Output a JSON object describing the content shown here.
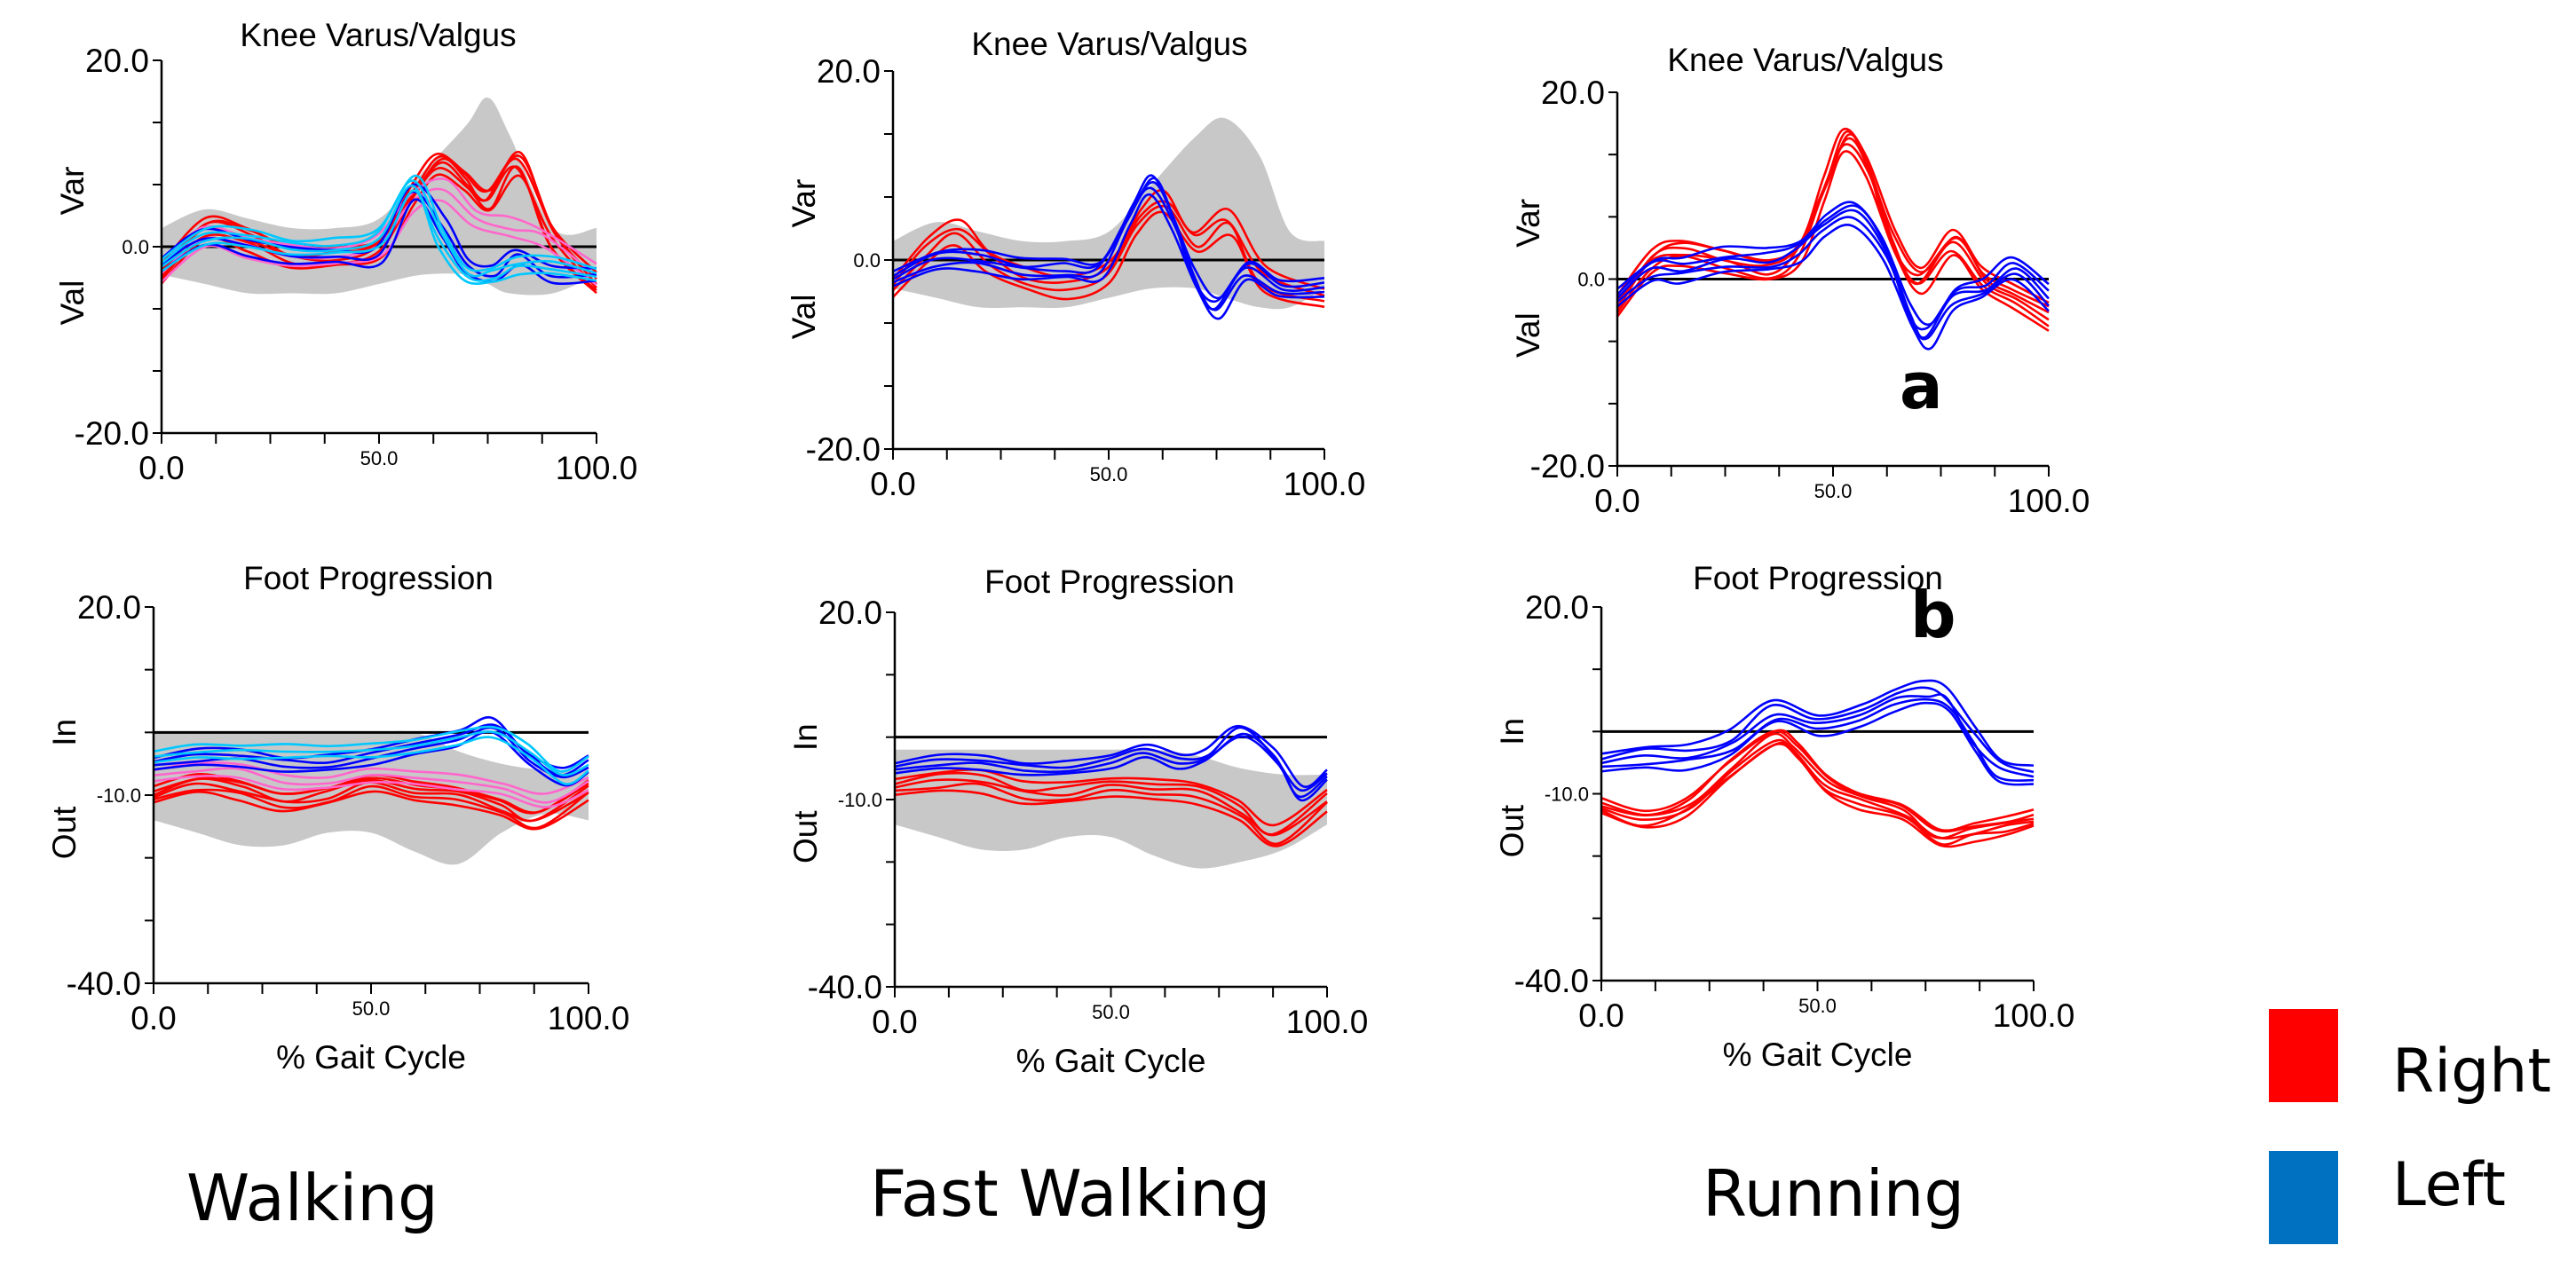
{
  "figure": {
    "conditions": [
      "Walking",
      "Fast Walking",
      "Running"
    ],
    "legend": [
      {
        "label": "Right",
        "color": "#ff0000"
      },
      {
        "label": "Left",
        "color": "#0070c0"
      }
    ],
    "panel_letters": [
      "a",
      "b"
    ]
  },
  "chart_data": [
    {
      "type": "line",
      "title": "Knee Varus/Valgus",
      "condition": "Walking",
      "row": "knee",
      "xlim": [
        0,
        100
      ],
      "ylim": [
        -20,
        20
      ],
      "x_ticks": [
        {
          "v": 0,
          "label": "0.0"
        },
        {
          "v": 50,
          "label": "50.0",
          "small": true
        },
        {
          "v": 100,
          "label": "100.0"
        }
      ],
      "y_ticks": [
        {
          "v": 20,
          "label": "20.0"
        },
        {
          "v": 0,
          "label": "0.0",
          "small": true
        },
        {
          "v": -20,
          "label": "-20.0"
        }
      ],
      "y_words": [
        {
          "v": 6,
          "label": "Var"
        },
        {
          "v": -6,
          "label": "Val"
        }
      ],
      "xlabel": "",
      "reference_line": 0,
      "normal_band": {
        "x": [
          0,
          10,
          20,
          30,
          40,
          50,
          60,
          70,
          75,
          80,
          90,
          100
        ],
        "upper": [
          2,
          4,
          3,
          2,
          2,
          3,
          8,
          13,
          16,
          12,
          2,
          2
        ],
        "lower": [
          -3,
          -4,
          -5,
          -5,
          -5,
          -4,
          -3,
          -3,
          -4,
          -5,
          -5,
          -3
        ]
      },
      "series": [
        {
          "name": "Right",
          "color": "#ff0000",
          "x": [
            0,
            10,
            20,
            30,
            40,
            50,
            58,
            64,
            70,
            75,
            82,
            90,
            100
          ],
          "y": [
            -3,
            2,
            1,
            -1,
            -1,
            0,
            6,
            9,
            7,
            5,
            9,
            1,
            -4
          ],
          "trials": 6,
          "spread": 1.2
        },
        {
          "name": "Right (pink)",
          "color": "#ff66cc",
          "x": [
            0,
            10,
            20,
            30,
            40,
            50,
            58,
            65,
            72,
            80,
            88,
            100
          ],
          "y": [
            -3,
            1,
            0,
            -1,
            -1,
            0,
            5,
            6,
            3,
            2,
            1,
            -3
          ],
          "trials": 3,
          "spread": 1.0
        },
        {
          "name": "Left",
          "color": "#0000ff",
          "x": [
            0,
            10,
            20,
            30,
            40,
            50,
            58,
            65,
            70,
            76,
            82,
            90,
            100
          ],
          "y": [
            -2,
            1,
            0,
            -1,
            -1,
            -1,
            6,
            2,
            -2,
            -3,
            -1,
            -3,
            -3
          ],
          "trials": 3,
          "spread": 0.8
        },
        {
          "name": "Left (cyan)",
          "color": "#00c8ff",
          "x": [
            0,
            10,
            20,
            30,
            40,
            50,
            58,
            64,
            70,
            76,
            82,
            90,
            100
          ],
          "y": [
            -2,
            1,
            1,
            0,
            0,
            1,
            7,
            1,
            -3,
            -3,
            -2,
            -2,
            -3
          ],
          "trials": 4,
          "spread": 0.8
        }
      ]
    },
    {
      "type": "line",
      "title": "Knee Varus/Valgus",
      "condition": "Fast Walking",
      "row": "knee",
      "xlim": [
        0,
        100
      ],
      "ylim": [
        -20,
        20
      ],
      "x_ticks": [
        {
          "v": 0,
          "label": "0.0"
        },
        {
          "v": 50,
          "label": "50.0",
          "small": true
        },
        {
          "v": 100,
          "label": "100.0"
        }
      ],
      "y_ticks": [
        {
          "v": 20,
          "label": "20.0"
        },
        {
          "v": 0,
          "label": "0.0",
          "small": true
        },
        {
          "v": -20,
          "label": "-20.0"
        }
      ],
      "y_words": [
        {
          "v": 6,
          "label": "Var"
        },
        {
          "v": -6,
          "label": "Val"
        }
      ],
      "xlabel": "",
      "reference_line": 0,
      "normal_band": {
        "x": [
          0,
          10,
          20,
          30,
          40,
          50,
          60,
          70,
          77,
          85,
          92,
          100
        ],
        "upper": [
          2,
          4,
          3,
          2,
          2,
          3,
          8,
          13,
          15,
          11,
          3,
          2
        ],
        "lower": [
          -3,
          -4,
          -5,
          -5,
          -5,
          -4,
          -3,
          -3,
          -4,
          -5,
          -5,
          -3
        ]
      },
      "series": [
        {
          "name": "Right",
          "color": "#ff0000",
          "x": [
            0,
            8,
            15,
            22,
            30,
            40,
            50,
            57,
            63,
            70,
            78,
            86,
            100
          ],
          "y": [
            -3,
            1,
            3,
            0,
            -2,
            -3,
            -1,
            4,
            6,
            2,
            4,
            -2,
            -4
          ],
          "trials": 4,
          "spread": 1.2
        },
        {
          "name": "Left",
          "color": "#0000ff",
          "x": [
            0,
            10,
            20,
            30,
            40,
            48,
            55,
            60,
            65,
            70,
            75,
            82,
            90,
            100
          ],
          "y": [
            -2,
            0,
            0,
            -1,
            -1,
            -1,
            5,
            8,
            4,
            -2,
            -5,
            -1,
            -3,
            -3
          ],
          "trials": 5,
          "spread": 1.0
        }
      ]
    },
    {
      "type": "line",
      "title": "Knee Varus/Valgus",
      "condition": "Running",
      "row": "knee",
      "xlim": [
        0,
        100
      ],
      "ylim": [
        -20,
        20
      ],
      "x_ticks": [
        {
          "v": 0,
          "label": "0.0"
        },
        {
          "v": 50,
          "label": "50.0",
          "small": true
        },
        {
          "v": 100,
          "label": "100.0"
        }
      ],
      "y_ticks": [
        {
          "v": 20,
          "label": "20.0"
        },
        {
          "v": 0,
          "label": "0.0",
          "small": true
        },
        {
          "v": -20,
          "label": "-20.0"
        }
      ],
      "y_words": [
        {
          "v": 6,
          "label": "Var"
        },
        {
          "v": -6,
          "label": "Val"
        }
      ],
      "xlabel": "",
      "reference_line": 0,
      "normal_band": null,
      "series": [
        {
          "name": "Right",
          "color": "#ff0000",
          "x": [
            0,
            8,
            15,
            25,
            35,
            42,
            48,
            53,
            58,
            64,
            70,
            78,
            85,
            92,
            100
          ],
          "y": [
            -3,
            2,
            3,
            2,
            1,
            3,
            10,
            15,
            12,
            4,
            0,
            4,
            0,
            -2,
            -4
          ],
          "trials": 6,
          "spread": 1.3
        },
        {
          "name": "Left",
          "color": "#0000ff",
          "x": [
            0,
            8,
            15,
            25,
            35,
            42,
            48,
            55,
            62,
            68,
            72,
            78,
            85,
            92,
            100
          ],
          "y": [
            -2,
            1,
            1,
            2,
            2,
            3,
            6,
            7,
            3,
            -4,
            -6,
            -2,
            -1,
            1,
            -2
          ],
          "trials": 5,
          "spread": 1.2
        }
      ]
    },
    {
      "type": "line",
      "title": "Foot Progression",
      "condition": "Walking",
      "row": "foot",
      "xlim": [
        0,
        100
      ],
      "ylim": [
        -40,
        20
      ],
      "x_ticks": [
        {
          "v": 0,
          "label": "0.0"
        },
        {
          "v": 50,
          "label": "50.0",
          "small": true
        },
        {
          "v": 100,
          "label": "100.0"
        }
      ],
      "y_ticks": [
        {
          "v": 20,
          "label": "20.0"
        },
        {
          "v": -10,
          "label": "-10.0",
          "small": true
        },
        {
          "v": -40,
          "label": "-40.0"
        }
      ],
      "y_words": [
        {
          "v": 0,
          "label": "In"
        },
        {
          "v": -16,
          "label": "Out"
        }
      ],
      "xlabel": "% Gait Cycle",
      "reference_line": 0,
      "normal_band": {
        "x": [
          0,
          10,
          20,
          30,
          40,
          50,
          60,
          70,
          80,
          90,
          100
        ],
        "upper": [
          0,
          0,
          0,
          0,
          0,
          0,
          0,
          -3,
          -5,
          -6,
          -6
        ],
        "lower": [
          -14,
          -16,
          -18,
          -18,
          -16,
          -16,
          -19,
          -21,
          -16,
          -13,
          -14
        ]
      },
      "series": [
        {
          "name": "Right",
          "color": "#ff0000",
          "x": [
            0,
            10,
            20,
            30,
            40,
            50,
            60,
            70,
            80,
            88,
            100
          ],
          "y": [
            -10,
            -8,
            -9,
            -11,
            -10,
            -8,
            -9,
            -10,
            -12,
            -14,
            -9
          ],
          "trials": 6,
          "spread": 1.5
        },
        {
          "name": "Right (pink)",
          "color": "#ff66cc",
          "x": [
            0,
            10,
            20,
            30,
            40,
            50,
            60,
            70,
            80,
            90,
            100
          ],
          "y": [
            -7,
            -6,
            -6,
            -8,
            -8,
            -7,
            -7,
            -8,
            -9,
            -11,
            -8
          ],
          "trials": 3,
          "spread": 1.0
        },
        {
          "name": "Left",
          "color": "#0000ff",
          "x": [
            0,
            10,
            20,
            30,
            40,
            50,
            60,
            70,
            78,
            86,
            94,
            100
          ],
          "y": [
            -5,
            -4,
            -4,
            -5,
            -5,
            -4,
            -2,
            -1,
            1,
            -4,
            -7,
            -5
          ],
          "trials": 4,
          "spread": 1.2
        },
        {
          "name": "Left (cyan)",
          "color": "#00c8ff",
          "x": [
            0,
            10,
            20,
            30,
            40,
            50,
            60,
            70,
            78,
            86,
            94,
            100
          ],
          "y": [
            -4,
            -3,
            -3,
            -3,
            -3,
            -3,
            -2,
            -1,
            0,
            -3,
            -7,
            -5
          ],
          "trials": 3,
          "spread": 1.0
        }
      ]
    },
    {
      "type": "line",
      "title": "Foot Progression",
      "condition": "Fast Walking",
      "row": "foot",
      "xlim": [
        0,
        100
      ],
      "ylim": [
        -40,
        20
      ],
      "x_ticks": [
        {
          "v": 0,
          "label": "0.0"
        },
        {
          "v": 50,
          "label": "50.0",
          "small": true
        },
        {
          "v": 100,
          "label": "100.0"
        }
      ],
      "y_ticks": [
        {
          "v": 20,
          "label": "20.0"
        },
        {
          "v": -10,
          "label": "-10.0",
          "small": true
        },
        {
          "v": -40,
          "label": "-40.0"
        }
      ],
      "y_words": [
        {
          "v": 0,
          "label": "In"
        },
        {
          "v": -16,
          "label": "Out"
        }
      ],
      "xlabel": "% Gait Cycle",
      "reference_line": 0,
      "normal_band": {
        "x": [
          0,
          10,
          20,
          30,
          40,
          50,
          60,
          70,
          80,
          90,
          100
        ],
        "upper": [
          -2,
          -2,
          -2,
          -2,
          -2,
          -2,
          -2,
          -3,
          -5,
          -6,
          -6
        ],
        "lower": [
          -14,
          -16,
          -18,
          -18,
          -16,
          -16,
          -19,
          -21,
          -20,
          -18,
          -14
        ]
      },
      "series": [
        {
          "name": "Right",
          "color": "#ff0000",
          "x": [
            0,
            10,
            20,
            30,
            40,
            50,
            60,
            70,
            80,
            88,
            100
          ],
          "y": [
            -8,
            -7,
            -7,
            -9,
            -9,
            -8,
            -8,
            -9,
            -12,
            -16,
            -10
          ],
          "trials": 5,
          "spread": 1.6
        },
        {
          "name": "Left",
          "color": "#0000ff",
          "x": [
            0,
            10,
            20,
            30,
            40,
            50,
            58,
            66,
            72,
            80,
            88,
            94,
            100
          ],
          "y": [
            -5,
            -4,
            -4,
            -5,
            -5,
            -4,
            -2,
            -4,
            -3,
            1,
            -3,
            -9,
            -6
          ],
          "trials": 4,
          "spread": 1.0
        }
      ]
    },
    {
      "type": "line",
      "title": "Foot Progression",
      "condition": "Running",
      "row": "foot",
      "xlim": [
        0,
        100
      ],
      "ylim": [
        -40,
        20
      ],
      "x_ticks": [
        {
          "v": 0,
          "label": "0.0"
        },
        {
          "v": 50,
          "label": "50.0",
          "small": true
        },
        {
          "v": 100,
          "label": "100.0"
        }
      ],
      "y_ticks": [
        {
          "v": 20,
          "label": "20.0"
        },
        {
          "v": -10,
          "label": "-10.0",
          "small": true
        },
        {
          "v": -40,
          "label": "-40.0"
        }
      ],
      "y_words": [
        {
          "v": 0,
          "label": "In"
        },
        {
          "v": -16,
          "label": "Out"
        }
      ],
      "xlabel": "% Gait Cycle",
      "reference_line": 0,
      "normal_band": null,
      "series": [
        {
          "name": "Right",
          "color": "#ff0000",
          "x": [
            0,
            10,
            20,
            30,
            40,
            45,
            52,
            60,
            70,
            78,
            86,
            94,
            100
          ],
          "y": [
            -12,
            -14,
            -12,
            -6,
            -1,
            -3,
            -8,
            -11,
            -13,
            -17,
            -16,
            -15,
            -14
          ],
          "trials": 6,
          "spread": 1.4
        },
        {
          "name": "Left",
          "color": "#0000ff",
          "x": [
            0,
            10,
            20,
            30,
            40,
            50,
            60,
            68,
            75,
            80,
            86,
            92,
            100
          ],
          "y": [
            -5,
            -4,
            -4,
            -2,
            3,
            1,
            3,
            5,
            6,
            5,
            -1,
            -6,
            -7
          ],
          "trials": 5,
          "spread": 1.8
        }
      ]
    }
  ]
}
